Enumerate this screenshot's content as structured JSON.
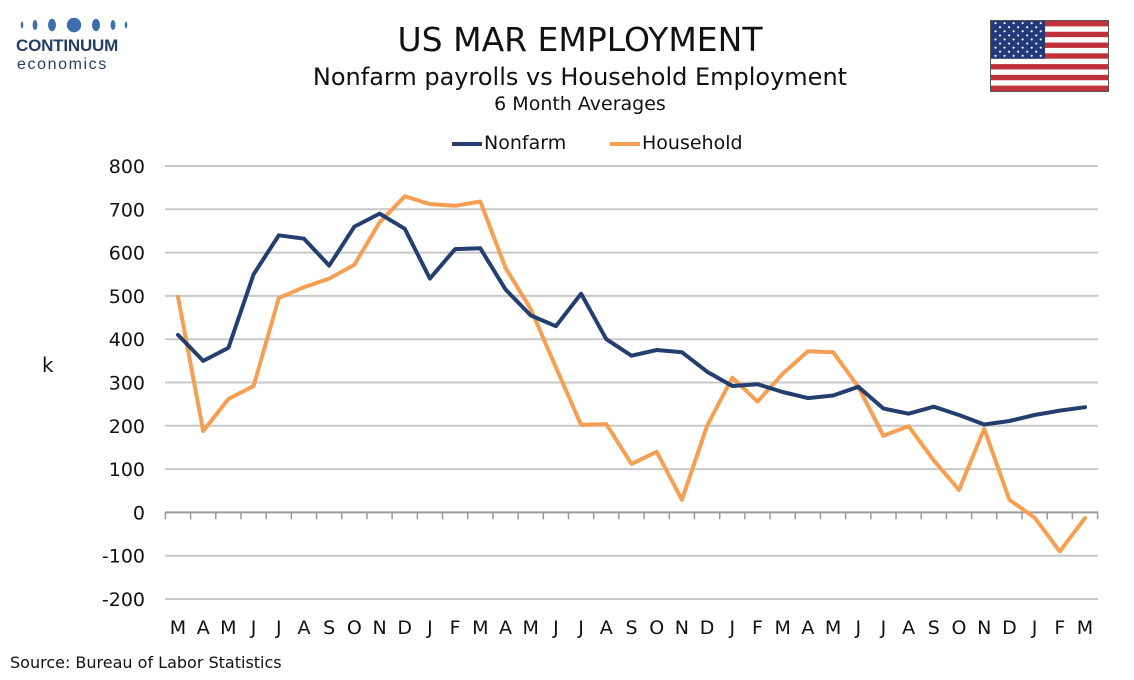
{
  "brand": {
    "line1": "CONTINUUM",
    "line2": "economics",
    "color": "#243f66"
  },
  "title": "US MAR EMPLOYMENT",
  "subtitle": "Nonfarm payrolls vs Household Employment",
  "subtitle2": "6 Month Averages",
  "source": "Source: Bureau of Labor Statistics",
  "flag": "us-flag",
  "chart_data": {
    "type": "line",
    "title": "US MAR EMPLOYMENT",
    "ylabel": "k",
    "xlabel": "",
    "ylim": [
      -200,
      800
    ],
    "yticks": [
      800,
      700,
      600,
      500,
      400,
      300,
      200,
      100,
      0,
      -100,
      -200
    ],
    "grid": true,
    "legend_position": "top-center",
    "categories": [
      "M",
      "A",
      "M",
      "J",
      "J",
      "A",
      "S",
      "O",
      "N",
      "D",
      "J",
      "F",
      "M",
      "A",
      "M",
      "J",
      "J",
      "A",
      "S",
      "O",
      "N",
      "D",
      "J",
      "F",
      "M",
      "A",
      "M",
      "J",
      "J",
      "A",
      "S",
      "O",
      "N",
      "D",
      "J",
      "F",
      "M"
    ],
    "series": [
      {
        "name": "Nonfarm",
        "color": "#243f6f",
        "values": [
          410,
          350,
          380,
          550,
          640,
          632,
          570,
          660,
          690,
          655,
          540,
          608,
          610,
          515,
          455,
          430,
          505,
          400,
          362,
          375,
          370,
          325,
          292,
          296,
          278,
          264,
          270,
          290,
          240,
          228,
          244,
          225,
          203,
          211,
          225,
          235,
          243
        ]
      },
      {
        "name": "Household",
        "color": "#f59f52",
        "values": [
          498,
          188,
          262,
          292,
          495,
          520,
          540,
          572,
          670,
          730,
          712,
          708,
          718,
          565,
          470,
          335,
          202,
          204,
          112,
          140,
          29,
          200,
          311,
          256,
          320,
          372,
          370,
          290,
          177,
          199,
          120,
          52,
          193,
          29,
          -12,
          -90,
          -13
        ]
      }
    ]
  }
}
